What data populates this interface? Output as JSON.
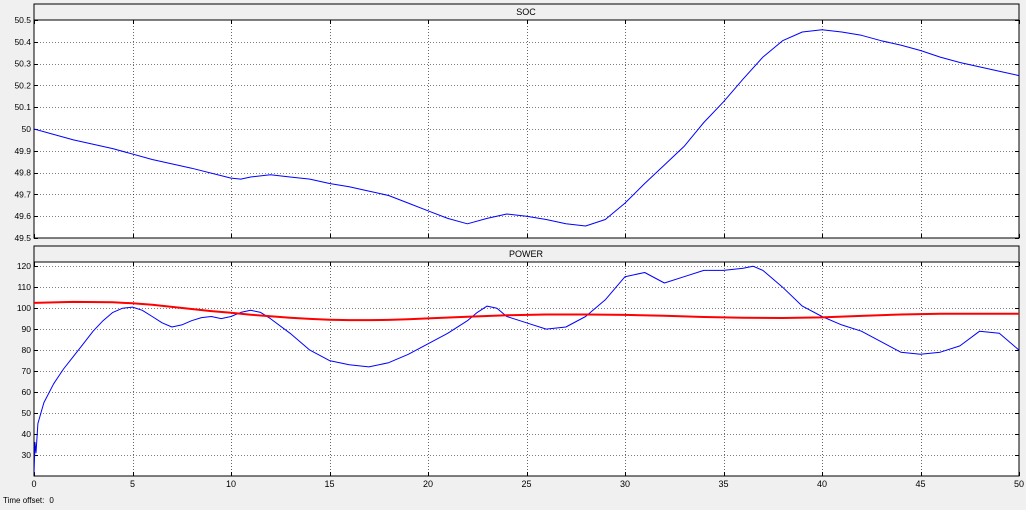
{
  "footer": {
    "time_offset_label": "Time offset:",
    "time_offset_value": "0"
  },
  "colors": {
    "background": "#f0f0f0",
    "axes_bg": "#ffffff",
    "title_bar": "#f0f0f0",
    "grid": "#000000",
    "series_blue": "#0000ff",
    "series_red": "#ff0000"
  },
  "chart_data": [
    {
      "type": "line",
      "title": "SOC",
      "xlabel": "",
      "ylabel": "",
      "xlim": [
        0,
        50
      ],
      "ylim": [
        49.5,
        50.5
      ],
      "xticks": [
        0,
        5,
        10,
        15,
        20,
        25,
        30,
        35,
        40,
        45,
        50
      ],
      "yticks": [
        49.5,
        49.6,
        49.7,
        49.8,
        49.9,
        50,
        50.1,
        50.2,
        50.3,
        50.4,
        50.5
      ],
      "ytick_labels": [
        "49.5",
        "49.6",
        "49.7",
        "49.8",
        "49.9",
        "50",
        "50.1",
        "50.2",
        "50.3",
        "50.4",
        "50.5"
      ],
      "show_xtick_labels": false,
      "grid": true,
      "series": [
        {
          "color": "#0000ff",
          "width": 1,
          "x": [
            0,
            2,
            4,
            6,
            8,
            10,
            10.5,
            11,
            12,
            13,
            14,
            15,
            16,
            17,
            18,
            19,
            20,
            21,
            22,
            23,
            24,
            25,
            26,
            27,
            28,
            29,
            30,
            31,
            32,
            33,
            34,
            35,
            36,
            37,
            38,
            39,
            40,
            41,
            42,
            43,
            44,
            45,
            46,
            47,
            48,
            49,
            50
          ],
          "y": [
            50.0,
            49.95,
            49.91,
            49.86,
            49.82,
            49.775,
            49.77,
            49.78,
            49.79,
            49.78,
            49.77,
            49.75,
            49.735,
            49.715,
            49.695,
            49.66,
            49.625,
            49.59,
            49.565,
            49.59,
            49.61,
            49.6,
            49.585,
            49.565,
            49.555,
            49.585,
            49.66,
            49.75,
            49.835,
            49.92,
            50.03,
            50.125,
            50.23,
            50.33,
            50.405,
            50.445,
            50.455,
            50.445,
            50.43,
            50.405,
            50.385,
            50.36,
            50.33,
            50.305,
            50.285,
            50.265,
            50.245
          ]
        }
      ]
    },
    {
      "type": "line",
      "title": "POWER",
      "xlabel": "",
      "ylabel": "",
      "xlim": [
        0,
        50
      ],
      "ylim": [
        20,
        122
      ],
      "xticks": [
        0,
        5,
        10,
        15,
        20,
        25,
        30,
        35,
        40,
        45,
        50
      ],
      "xtick_labels": [
        "0",
        "5",
        "10",
        "15",
        "20",
        "25",
        "30",
        "35",
        "40",
        "45",
        "50"
      ],
      "yticks": [
        30,
        40,
        50,
        60,
        70,
        80,
        90,
        100,
        110,
        120
      ],
      "ytick_labels": [
        "30",
        "40",
        "50",
        "60",
        "70",
        "80",
        "90",
        "100",
        "110",
        "120"
      ],
      "show_xtick_labels": true,
      "grid": true,
      "series": [
        {
          "color": "#0000ff",
          "width": 1,
          "x": [
            0,
            0.05,
            0.1,
            0.2,
            0.5,
            1,
            1.5,
            2,
            2.5,
            3,
            3.5,
            4,
            4.5,
            5,
            5.5,
            6,
            6.5,
            7,
            7.5,
            8,
            8.5,
            9,
            9.5,
            10,
            10.5,
            11,
            11.5,
            12,
            13,
            14,
            15,
            16,
            17,
            18,
            19,
            20,
            21,
            22,
            22.5,
            23,
            23.5,
            24,
            25,
            26,
            27,
            28,
            29,
            30,
            31,
            32,
            33,
            34,
            35,
            36,
            36.5,
            37,
            38,
            39,
            40,
            41,
            42,
            43,
            44,
            45,
            46,
            47,
            48,
            49,
            50
          ],
          "y": [
            21,
            36,
            31,
            45,
            55,
            64,
            71,
            77,
            83,
            89,
            94,
            98,
            100,
            100.5,
            99,
            96,
            93,
            91,
            92,
            94,
            95.5,
            96,
            95,
            96,
            98,
            99,
            98,
            95,
            88,
            80,
            75,
            73,
            72,
            74,
            78,
            83,
            88,
            94,
            98,
            101,
            100,
            96,
            93,
            90,
            91,
            96,
            104,
            115,
            117,
            112,
            115,
            118,
            118,
            119,
            120,
            118,
            110,
            101,
            96,
            92,
            89,
            84,
            79,
            78,
            79,
            82,
            89,
            88,
            80
          ]
        },
        {
          "color": "#ff0000",
          "width": 2,
          "x": [
            0,
            2,
            4,
            5,
            6,
            7,
            8,
            9,
            10,
            11,
            12,
            13,
            14,
            15,
            16,
            17,
            18,
            19,
            20,
            22,
            24,
            26,
            28,
            30,
            32,
            34,
            36,
            38,
            40,
            42,
            44,
            46,
            48,
            50
          ],
          "y": [
            102.5,
            103,
            102.8,
            102.3,
            101.6,
            100.6,
            99.6,
            98.6,
            97.8,
            96.9,
            96.1,
            95.4,
            94.9,
            94.5,
            94.3,
            94.3,
            94.4,
            94.7,
            95.1,
            95.9,
            96.6,
            97.0,
            97.0,
            96.8,
            96.4,
            95.8,
            95.4,
            95.3,
            95.6,
            96.3,
            97.0,
            97.3,
            97.3,
            97.3
          ]
        }
      ]
    }
  ]
}
